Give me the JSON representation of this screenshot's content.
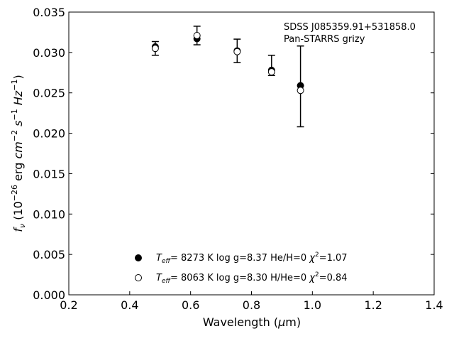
{
  "chart_data": {
    "type": "scatter",
    "xlabel_main": "Wavelength (",
    "xlabel_mu": "μ",
    "xlabel_unit": "m)",
    "ylabel_f": "f",
    "ylabel_nu": "ν",
    "ylabel_rest": "(10",
    "ylabel_exp1": "−26",
    "ylabel_erg": "erg ",
    "ylabel_cm": "cm",
    "ylabel_exp2": "−2",
    "ylabel_s": "s",
    "ylabel_exp3": "−1",
    "ylabel_hz": "Hz",
    "ylabel_exp4": "−1",
    "ylabel_close": ")",
    "xlim": [
      0.2,
      1.4
    ],
    "ylim": [
      0.0,
      0.035
    ],
    "x_ticks": [
      "0.2",
      "0.4",
      "0.6",
      "0.8",
      "1.0",
      "1.2",
      "1.4"
    ],
    "y_ticks": [
      "0.000",
      "0.005",
      "0.010",
      "0.015",
      "0.020",
      "0.025",
      "0.030",
      "0.035"
    ],
    "annotations": [
      "SDSS J085359.91+531858.0",
      "Pan-STARRS grizy"
    ],
    "observed": [
      {
        "x": 0.484,
        "y": 0.0305,
        "yerr": 0.00085
      },
      {
        "x": 0.621,
        "y": 0.0321,
        "yerr": 0.00115
      },
      {
        "x": 0.753,
        "y": 0.0302,
        "yerr": 0.00145
      },
      {
        "x": 0.866,
        "y": 0.0284,
        "yerr": 0.00125
      },
      {
        "x": 0.961,
        "y": 0.0258,
        "yerr": 0.005
      }
    ],
    "series": [
      {
        "marker": "filled",
        "x": [
          0.484,
          0.621,
          0.753,
          0.866,
          0.961
        ],
        "y": [
          0.0307,
          0.0317,
          0.0302,
          0.0278,
          0.0259
        ],
        "legend": {
          "T": "T",
          "eff": "eff",
          "text": "=  8273 K  log g=8.37  He/H=0  ",
          "chi": "χ",
          "chi_exp": "2",
          "chi_val": "=1.07"
        }
      },
      {
        "marker": "open",
        "x": [
          0.484,
          0.621,
          0.753,
          0.866,
          0.961
        ],
        "y": [
          0.0305,
          0.0321,
          0.0301,
          0.0276,
          0.0253
        ],
        "legend": {
          "T": "T",
          "eff": "eff",
          "text": "=  8063 K  log g=8.30  H/He=0  ",
          "chi": "χ",
          "chi_exp": "2",
          "chi_val": "=0.84"
        }
      }
    ],
    "legend_position": "lower-center",
    "grid": false
  }
}
